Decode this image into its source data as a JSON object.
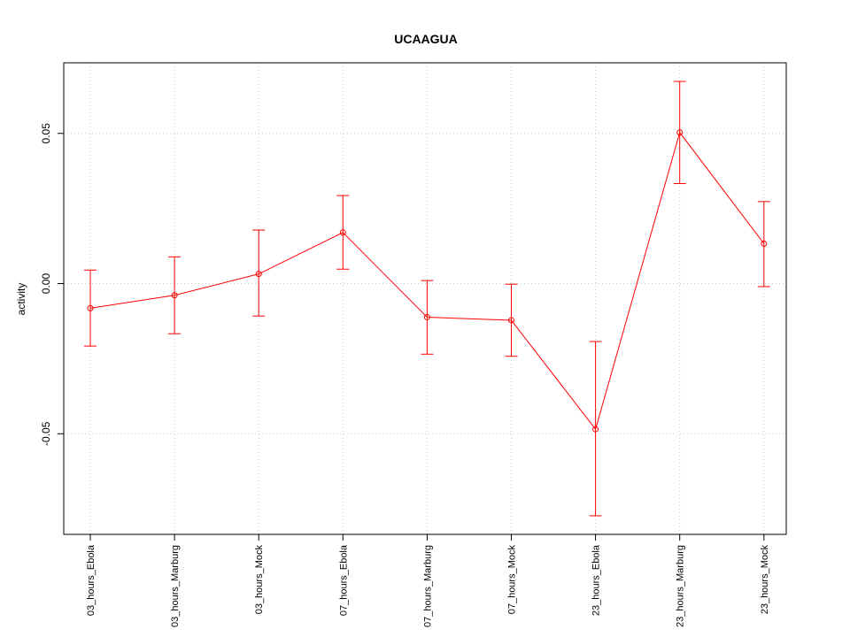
{
  "chart_data": {
    "type": "line",
    "title": "UCAAGUA",
    "xlabel": "",
    "ylabel": "activity",
    "categories": [
      "03_hours_Ebola",
      "03_hours_Marburg",
      "03_hours_Mock",
      "07_hours_Ebola",
      "07_hours_Marburg",
      "07_hours_Mock",
      "23_hours_Ebola",
      "23_hours_Marburg",
      "23_hours_Mock"
    ],
    "series": [
      {
        "values": [
          -0.0082,
          -0.0039,
          0.0032,
          0.017,
          -0.0112,
          -0.0122,
          -0.0485,
          0.0503,
          0.0133
        ],
        "error_low": [
          -0.0208,
          -0.0167,
          -0.0108,
          0.0048,
          -0.0235,
          -0.0242,
          -0.0773,
          0.0333,
          -0.001
        ],
        "error_high": [
          0.0045,
          0.0089,
          0.0178,
          0.0293,
          0.001,
          -0.0002,
          -0.0193,
          0.0673,
          0.0273
        ],
        "color": "#ff0000"
      }
    ],
    "yticks": [
      -0.05,
      0.0,
      0.05
    ],
    "ytick_labels": [
      "-0.05",
      "0.00",
      "0.05"
    ],
    "ylim": [
      -0.0835,
      0.0735
    ],
    "grid": true,
    "error_bars": true
  }
}
